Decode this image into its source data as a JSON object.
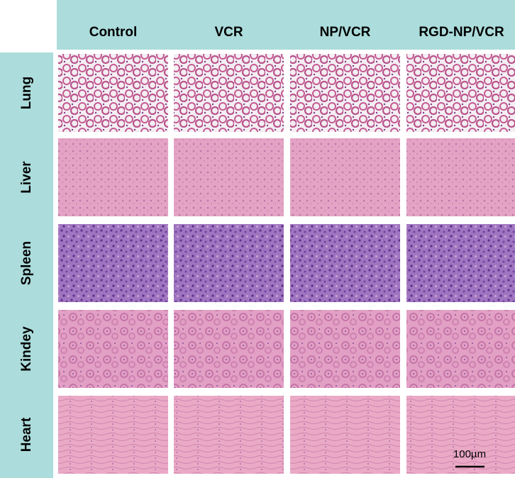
{
  "columns": [
    "Control",
    "VCR",
    "NP/VCR",
    "RGD-NP/VCR"
  ],
  "rows": [
    "Lung",
    "Liver",
    "Spleen",
    "Kindey",
    "Heart"
  ],
  "scale_bar": "100µm"
}
